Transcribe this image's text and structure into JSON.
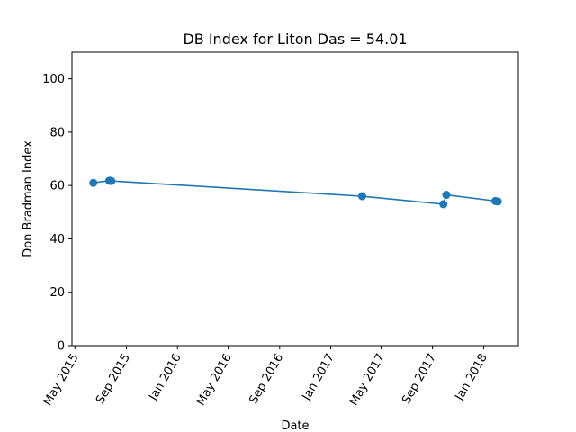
{
  "chart_data": {
    "type": "line",
    "title": "DB Index for Liton Das = 54.01",
    "xlabel": "Date",
    "ylabel": "Don Bradman Index",
    "xlim": [
      "2015-04-24",
      "2018-03-25"
    ],
    "ylim": [
      0,
      110
    ],
    "grid": false,
    "x_ticks": [
      {
        "date": "2015-05-01",
        "label": "May 2015"
      },
      {
        "date": "2015-09-01",
        "label": "Sep 2015"
      },
      {
        "date": "2016-01-01",
        "label": "Jan 2016"
      },
      {
        "date": "2016-05-01",
        "label": "May 2016"
      },
      {
        "date": "2016-09-01",
        "label": "Sep 2016"
      },
      {
        "date": "2017-01-01",
        "label": "Jan 2017"
      },
      {
        "date": "2017-05-01",
        "label": "May 2017"
      },
      {
        "date": "2017-09-01",
        "label": "Sep 2017"
      },
      {
        "date": "2018-01-01",
        "label": "Jan 2018"
      }
    ],
    "y_ticks": [
      0,
      20,
      40,
      60,
      80,
      100
    ],
    "series": [
      {
        "color": "#1f77b4",
        "marker": "circle",
        "points": [
          {
            "x": "2015-06-14",
            "y": 61
          },
          {
            "x": "2015-07-22",
            "y": 61.8
          },
          {
            "x": "2015-07-25",
            "y": 61.8
          },
          {
            "x": "2015-07-27",
            "y": 61.7
          },
          {
            "x": "2017-03-17",
            "y": 56
          },
          {
            "x": "2017-09-27",
            "y": 53
          },
          {
            "x": "2017-10-04",
            "y": 56.5
          },
          {
            "x": "2018-01-29",
            "y": 54.2
          },
          {
            "x": "2018-02-04",
            "y": 54.01
          }
        ]
      }
    ]
  }
}
